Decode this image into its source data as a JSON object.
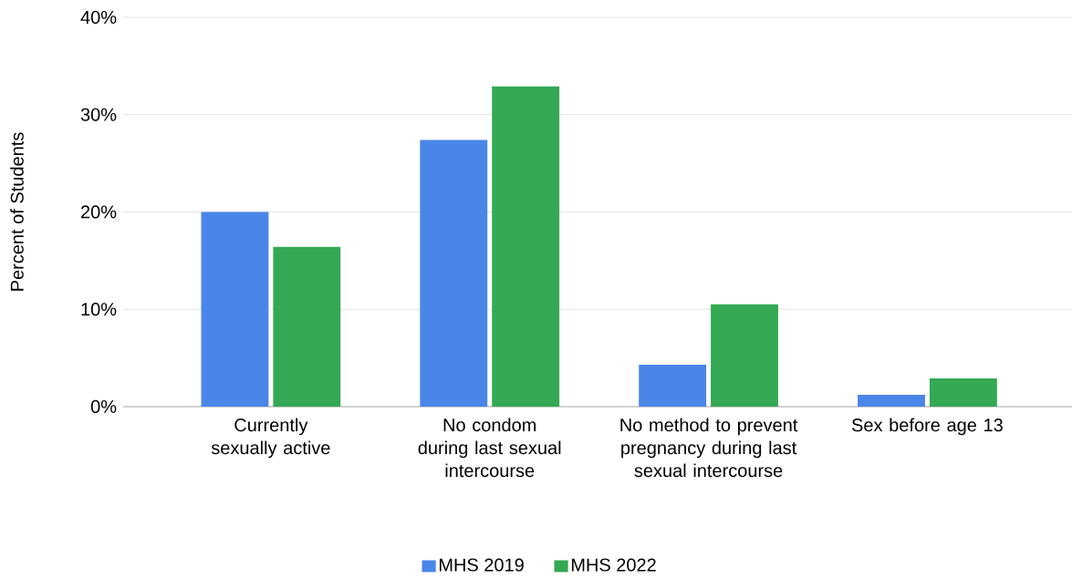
{
  "chart_data": {
    "type": "bar",
    "ylabel": "Percent of Students",
    "categories": [
      "Currently sexually active",
      "No condom during last sexual intercourse",
      "No method to prevent pregnancy during last sexual intercourse",
      "Sex before age 13"
    ],
    "series": [
      {
        "name": "MHS 2019",
        "color": "#4a86e8",
        "values": [
          20.0,
          27.4,
          4.3,
          1.2
        ]
      },
      {
        "name": "MHS 2022",
        "color": "#34a853",
        "values": [
          16.4,
          32.9,
          10.5,
          2.9
        ]
      }
    ],
    "ylim": [
      0,
      40
    ],
    "yticks": [
      {
        "value": 0,
        "label": "0%"
      },
      {
        "value": 10,
        "label": "10%"
      },
      {
        "value": 20,
        "label": "20%"
      },
      {
        "value": 30,
        "label": "30%"
      },
      {
        "value": 40,
        "label": "40%"
      }
    ],
    "grid": "y",
    "legend": "bottom"
  }
}
